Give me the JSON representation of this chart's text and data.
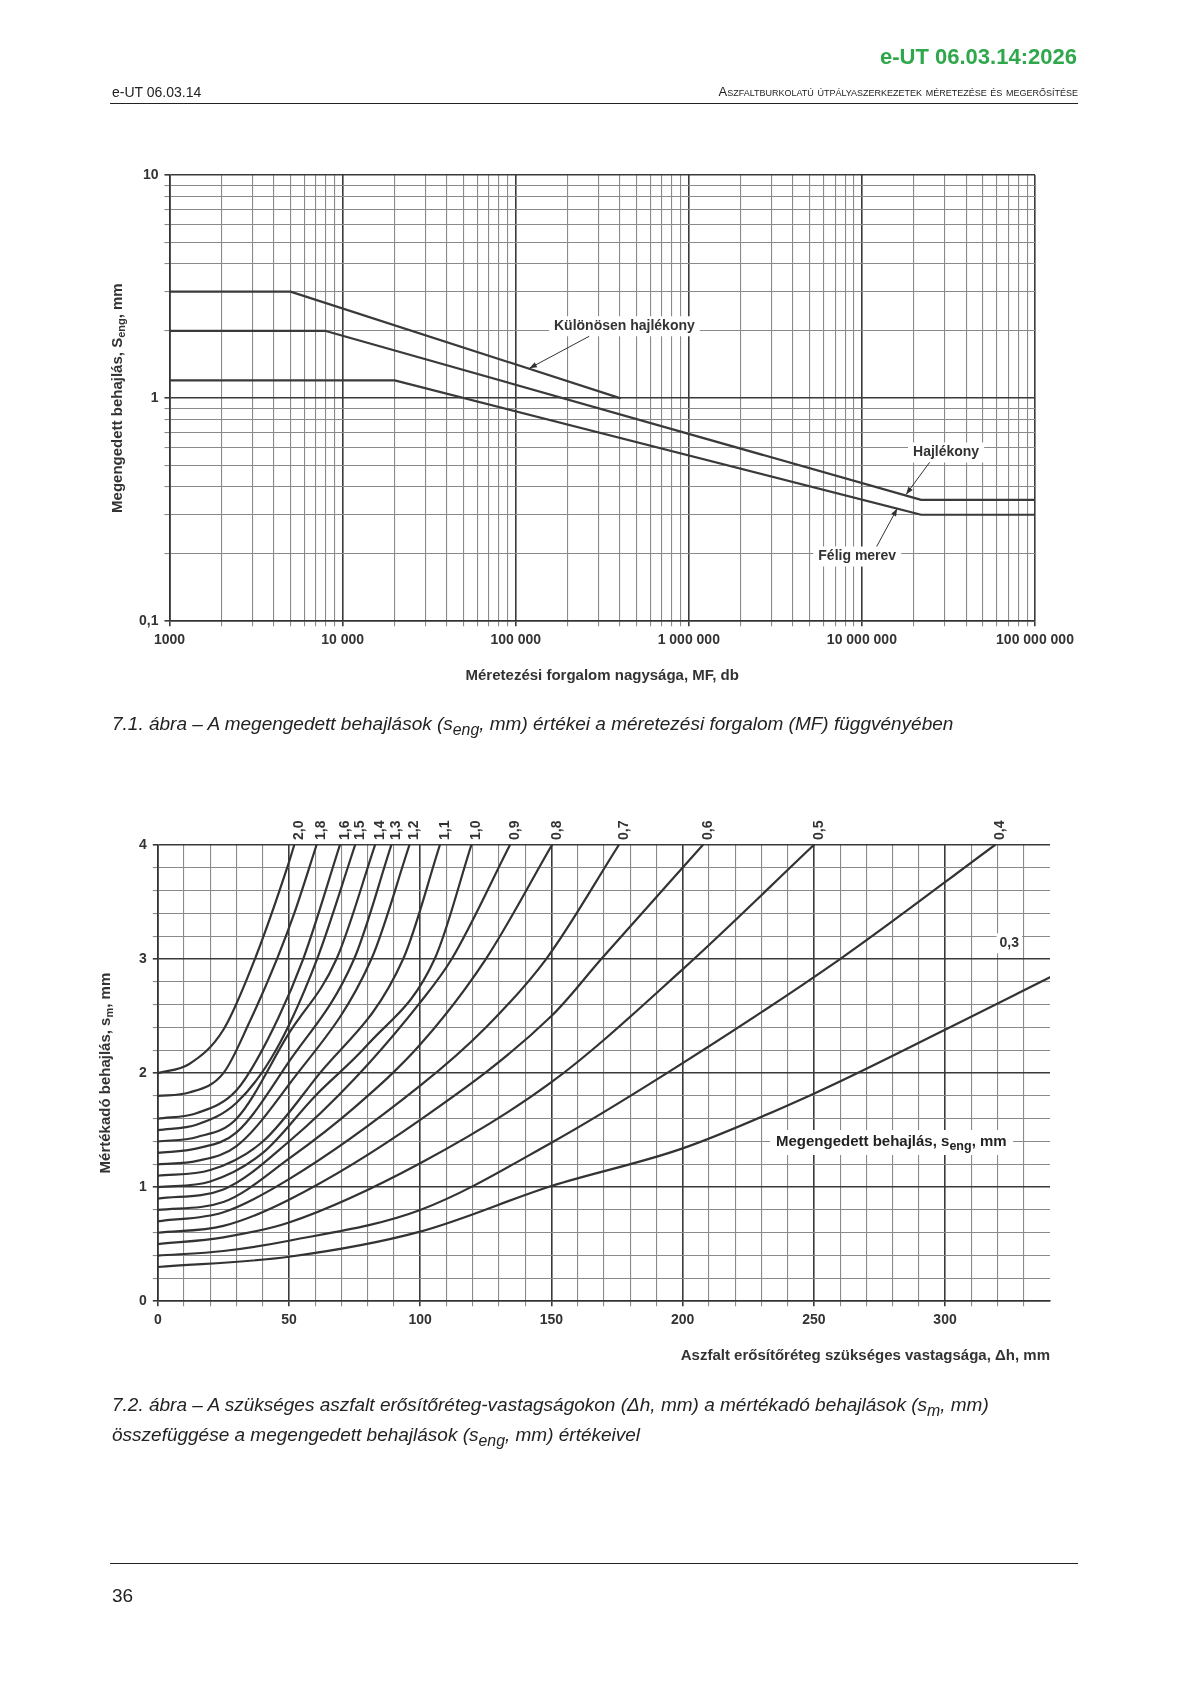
{
  "chart_data": [
    {
      "type": "line",
      "title": "7.1. ábra – A megengedett behajlások (s$_{eng}$, mm) értékei a méretezési forgalom (MF) függvényében",
      "xlabel": "Méretezési forgalom nagysága, MF, db",
      "ylabel": "Megengedett behajlás, S$_{eng}$, mm",
      "log": "xy",
      "grid": true,
      "xlim": [
        1000,
        100000000
      ],
      "ylim": [
        0.1,
        10
      ],
      "xticks": [
        1000,
        {
          "value": 2000,
          "label": null
        },
        {
          "value": 3000,
          "label": null
        },
        {
          "value": 4000,
          "label": null
        },
        {
          "value": 5000,
          "label": null
        },
        {
          "value": 6000,
          "label": null
        },
        {
          "value": 7000,
          "label": null
        },
        {
          "value": 8000,
          "label": null
        },
        {
          "value": 9000,
          "label": null
        },
        {
          "value": 10000,
          "label": "10 000"
        },
        {
          "value": 20000,
          "label": null
        },
        {
          "value": 30000,
          "label": null
        },
        {
          "value": 40000,
          "label": null
        },
        {
          "value": 50000,
          "label": null
        },
        {
          "value": 60000,
          "label": null
        },
        {
          "value": 70000,
          "label": null
        },
        {
          "value": 80000,
          "label": null
        },
        {
          "value": 90000,
          "label": null
        },
        {
          "value": 100000,
          "label": "100 000"
        },
        {
          "value": 200000,
          "label": null
        },
        {
          "value": 300000,
          "label": null
        },
        {
          "value": 400000,
          "label": null
        },
        {
          "value": 500000,
          "label": null
        },
        {
          "value": 600000,
          "label": null
        },
        {
          "value": 700000,
          "label": null
        },
        {
          "value": 800000,
          "label": null
        },
        {
          "value": 900000,
          "label": null
        },
        {
          "value": 1000000,
          "label": "1 000 000"
        },
        {
          "value": 2000000,
          "label": null
        },
        {
          "value": 3000000,
          "label": null
        },
        {
          "value": 4000000,
          "label": null
        },
        {
          "value": 5000000,
          "label": null
        },
        {
          "value": 6000000,
          "label": null
        },
        {
          "value": 7000000,
          "label": null
        },
        {
          "value": 8000000,
          "label": null
        },
        {
          "value": 9000000,
          "label": null
        },
        {
          "value": 10000000,
          "label": "10 000 000"
        },
        {
          "value": 20000000,
          "label": null
        },
        {
          "value": 30000000,
          "label": null
        },
        {
          "value": 40000000,
          "label": null
        },
        {
          "value": 50000000,
          "label": null
        },
        {
          "value": 60000000,
          "label": null
        },
        {
          "value": 70000000,
          "label": null
        },
        {
          "value": 80000000,
          "label": null
        },
        {
          "value": 90000000,
          "label": null
        },
        {
          "value": 100000000,
          "label": "100 000 000"
        }
      ],
      "yticks": [
        {
          "value": 0.1,
          "label": "0,1"
        },
        {
          "value": 0.2,
          "label": null
        },
        {
          "value": 0.3,
          "label": null
        },
        {
          "value": 0.4,
          "label": null
        },
        {
          "value": 0.5,
          "label": null
        },
        {
          "value": 0.6,
          "label": null
        },
        {
          "value": 0.7,
          "label": null
        },
        {
          "value": 0.8,
          "label": null
        },
        {
          "value": 0.9,
          "label": null
        },
        1,
        {
          "value": 2,
          "label": null
        },
        {
          "value": 3,
          "label": null
        },
        {
          "value": 4,
          "label": null
        },
        {
          "value": 5,
          "label": null
        },
        {
          "value": 6,
          "label": null
        },
        {
          "value": 7,
          "label": null
        },
        {
          "value": 8,
          "label": null
        },
        {
          "value": 9,
          "label": null
        },
        10
      ],
      "series": [
        {
          "color": "#3a3a3a",
          "x": [
            1000,
            5000,
            400000
          ],
          "values": [
            3,
            3,
            1.0
          ]
        },
        {
          "color": "#3a3a3a",
          "x": [
            1000,
            8000,
            22000000,
            100000000
          ],
          "values": [
            2,
            2,
            0.35,
            0.35
          ]
        },
        {
          "color": "#3a3a3a",
          "x": [
            1000,
            20000,
            22000000,
            100000000
          ],
          "values": [
            1.2,
            1.2,
            0.3,
            0.3
          ]
        }
      ],
      "annotations": [
        "e-UT 06.03.14:2026",
        "e-UT 06.03.14",
        "Aszfaltburkolatú útpályaszerkezetek méretezése és megerősítése",
        {
          "text": "Különösen hajlékony",
          "x": 120000,
          "y": 1.36
        },
        {
          "text": "Hajlékony",
          "x": 18000000,
          "y": 0.37
        },
        {
          "text": "Félig merev",
          "x": 16000000,
          "y": 0.32
        }
      ]
    },
    {
      "type": "line",
      "title": "7.2. ábra – A szükséges aszfalt erősítőréteg-vastagságokon (Δh, mm) a mértékadó behajlások (s$_{m}$, mm) összefüggése a megengedett behajlások (s$_{eng}$, mm) értékeivel",
      "xlabel": "Aszfalt erősítőréteg szükséges vastagsága, Δh, mm",
      "ylabel": "Mértékadó behajlás, s$_{m}$, mm",
      "grid": true,
      "xlim": [
        0,
        340
      ],
      "ylim": [
        0,
        4
      ],
      "xticks": [
        0,
        {
          "value": 10,
          "label": null
        },
        {
          "value": 20,
          "label": null
        },
        {
          "value": 30,
          "label": null
        },
        {
          "value": 40,
          "label": null
        },
        50,
        {
          "value": 60,
          "label": null
        },
        {
          "value": 70,
          "label": null
        },
        {
          "value": 80,
          "label": null
        },
        {
          "value": 90,
          "label": null
        },
        100,
        {
          "value": 110,
          "label": null
        },
        {
          "value": 120,
          "label": null
        },
        {
          "value": 130,
          "label": null
        },
        {
          "value": 140,
          "label": null
        },
        150,
        {
          "value": 160,
          "label": null
        },
        {
          "value": 170,
          "label": null
        },
        {
          "value": 180,
          "label": null
        },
        {
          "value": 190,
          "label": null
        },
        200,
        {
          "value": 210,
          "label": null
        },
        {
          "value": 220,
          "label": null
        },
        {
          "value": 230,
          "label": null
        },
        {
          "value": 240,
          "label": null
        },
        250,
        {
          "value": 260,
          "label": null
        },
        {
          "value": 270,
          "label": null
        },
        {
          "value": 280,
          "label": null
        },
        {
          "value": 290,
          "label": null
        },
        300,
        {
          "value": 310,
          "label": null
        },
        {
          "value": 320,
          "label": null
        },
        {
          "value": 330,
          "label": null
        }
      ],
      "yticks": [
        0,
        {
          "value": 0.2,
          "label": null
        },
        {
          "value": 0.4,
          "label": null
        },
        {
          "value": 0.6,
          "label": null
        },
        {
          "value": 0.8,
          "label": null
        },
        1,
        {
          "value": 1.2,
          "label": null
        },
        {
          "value": 1.4,
          "label": null
        },
        {
          "value": 1.6,
          "label": null
        },
        {
          "value": 1.8,
          "label": null
        },
        2,
        {
          "value": 2.2,
          "label": null
        },
        {
          "value": 2.4,
          "label": null
        },
        {
          "value": 2.6,
          "label": null
        },
        {
          "value": 2.8,
          "label": null
        },
        3,
        {
          "value": 3.2,
          "label": null
        },
        {
          "value": 3.4,
          "label": null
        },
        {
          "value": 3.6,
          "label": null
        },
        {
          "value": 3.8,
          "label": null
        },
        4
      ],
      "series": [
        {
          "name": "2,0",
          "color": "#333333",
          "x": [
            0,
            12,
            25,
            37,
            50,
            52
          ],
          "values": [
            2,
            2.08,
            2.38,
            3,
            3.85,
            4
          ]
        },
        {
          "name": "1,8",
          "color": "#333333",
          "x": [
            0,
            12,
            25,
            35,
            45.4,
            52,
            60.5
          ],
          "values": [
            1.8,
            1.83,
            2.0,
            2.45,
            3,
            3.4,
            4
          ]
        },
        {
          "name": "1,6",
          "color": "#333333",
          "x": [
            0,
            15,
            30,
            42,
            55.4,
            69.4
          ],
          "values": [
            1.6,
            1.65,
            1.85,
            2.3,
            3,
            4
          ]
        },
        {
          "name": "1,5",
          "color": "#333333",
          "x": [
            0,
            15,
            30,
            45,
            60.7,
            75.2
          ],
          "values": [
            1.5,
            1.55,
            1.74,
            2.2,
            3,
            4
          ]
        },
        {
          "name": "1,4",
          "color": "#333333",
          "x": [
            0,
            15,
            30,
            50,
            68.1,
            82.8
          ],
          "values": [
            1.4,
            1.44,
            1.6,
            2.35,
            3,
            4
          ]
        },
        {
          "name": "1,3",
          "color": "#333333",
          "x": [
            0,
            15,
            30,
            50,
            74.8,
            89
          ],
          "values": [
            1.3,
            1.34,
            1.48,
            2.1,
            3,
            4
          ]
        },
        {
          "name": "1,2",
          "color": "#333333",
          "x": [
            0,
            15,
            30,
            50,
            81.4,
            95.9
          ],
          "values": [
            1.2,
            1.23,
            1.36,
            1.9,
            3,
            4
          ]
        },
        {
          "name": "1,1",
          "color": "#333333",
          "x": [
            0,
            20,
            40,
            60,
            93.5,
            107.5
          ],
          "values": [
            1.1,
            1.15,
            1.4,
            1.95,
            3,
            4
          ]
        },
        {
          "name": "1,0",
          "color": "#333333",
          "x": [
            0,
            20,
            40,
            60,
            80,
            105.5,
            119.5
          ],
          "values": [
            1.0,
            1.05,
            1.3,
            1.8,
            2.25,
            3,
            4
          ]
        },
        {
          "name": "0,9",
          "color": "#333333",
          "x": [
            0,
            25,
            50,
            75,
            100,
            112,
            134.2
          ],
          "values": [
            0.9,
            0.98,
            1.4,
            1.95,
            2.62,
            3,
            4
          ]
        },
        {
          "name": "0,8",
          "color": "#333333",
          "x": [
            0,
            25,
            50,
            75,
            100,
            125,
            150.2
          ],
          "values": [
            0.8,
            0.87,
            1.25,
            1.7,
            2.25,
            3,
            4
          ]
        },
        {
          "name": "0,7",
          "color": "#333333",
          "x": [
            0,
            25,
            50,
            100,
            125,
            148,
            175.7
          ],
          "values": [
            0.7,
            0.78,
            1.07,
            1.89,
            2.4,
            3,
            4
          ]
        },
        {
          "name": "0,6",
          "color": "#333333",
          "x": [
            0,
            25,
            50,
            100,
            150,
            169,
            207.7
          ],
          "values": [
            0.6,
            0.66,
            0.89,
            1.59,
            2.5,
            3,
            4
          ]
        },
        {
          "name": "0,5",
          "color": "#333333",
          "x": [
            0,
            25,
            50,
            100,
            150,
            200,
            250
          ],
          "values": [
            0.5,
            0.56,
            0.69,
            1.21,
            1.92,
            2.91,
            4
          ]
        },
        {
          "name": "0,4",
          "color": "#333333",
          "x": [
            0,
            25,
            50,
            100,
            150,
            194,
            260,
            319
          ],
          "values": [
            0.4,
            0.44,
            0.53,
            0.8,
            1.39,
            2,
            3,
            4
          ]
        },
        {
          "name": "0,3",
          "color": "#333333",
          "x": [
            0,
            50,
            100,
            150,
            200,
            250,
            300,
            340
          ],
          "values": [
            0.3,
            0.39,
            0.61,
            1.01,
            1.34,
            1.82,
            2.38,
            2.84
          ]
        }
      ],
      "annotations": [
        "Megengedett behajlás, s$_{eng}$, mm",
        "36"
      ]
    }
  ]
}
